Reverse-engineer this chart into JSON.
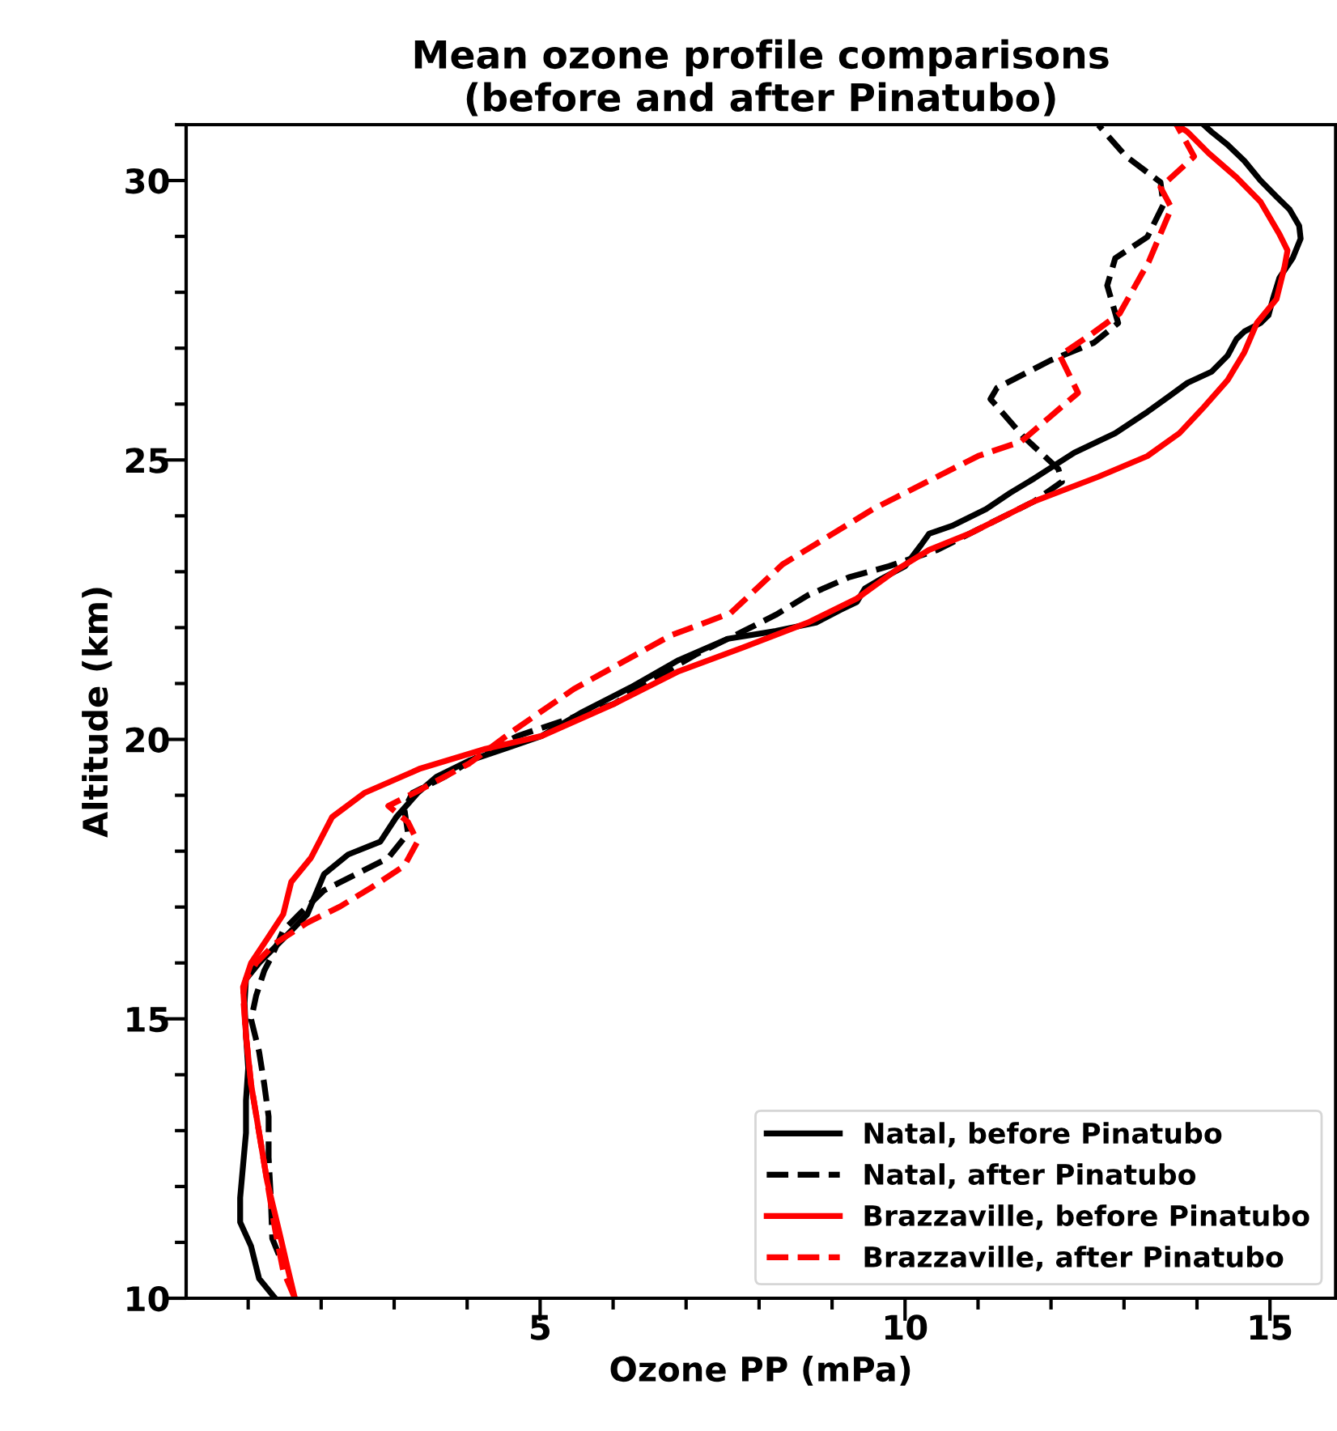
{
  "chart_data": {
    "type": "line",
    "title": "Mean ozone profile comparisons\n(before and after Pinatubo)",
    "xlabel": "Ozone PP (mPa)",
    "ylabel": "Altitude (km)",
    "xlim": [
      0.15,
      15.9
    ],
    "ylim": [
      10,
      31
    ],
    "xticks": [
      {
        "value": 1,
        "label": null
      },
      {
        "value": 2,
        "label": null
      },
      {
        "value": 3,
        "label": null
      },
      {
        "value": 4,
        "label": null
      },
      5,
      {
        "value": 6,
        "label": null
      },
      {
        "value": 7,
        "label": null
      },
      {
        "value": 8,
        "label": null
      },
      {
        "value": 9,
        "label": null
      },
      10,
      {
        "value": 11,
        "label": null
      },
      {
        "value": 12,
        "label": null
      },
      {
        "value": 13,
        "label": null
      },
      {
        "value": 14,
        "label": null
      },
      15
    ],
    "yticks": [
      10,
      {
        "value": 11,
        "label": null
      },
      {
        "value": 12,
        "label": null
      },
      {
        "value": 13,
        "label": null
      },
      {
        "value": 14,
        "label": null
      },
      15,
      {
        "value": 16,
        "label": null
      },
      {
        "value": 17,
        "label": null
      },
      {
        "value": 18,
        "label": null
      },
      {
        "value": 19,
        "label": null
      },
      20,
      {
        "value": 21,
        "label": null
      },
      {
        "value": 22,
        "label": null
      },
      {
        "value": 23,
        "label": null
      },
      {
        "value": 24,
        "label": null
      },
      25,
      {
        "value": 26,
        "label": null
      },
      {
        "value": 27,
        "label": null
      },
      {
        "value": 28,
        "label": null
      },
      {
        "value": 29,
        "label": null
      },
      30,
      {
        "value": 31,
        "label": null
      }
    ],
    "grid": false,
    "legend": "bottom right",
    "marker": "none",
    "series": [
      {
        "name": "Natal, before Pinatubo",
        "color": "#000000",
        "line_style": "solid",
        "x": [
          1.37,
          1.15,
          1.04,
          0.89,
          0.89,
          0.93,
          0.97,
          0.97,
          1.0,
          0.97,
          0.95,
          0.97,
          1.15,
          1.48,
          1.81,
          2.04,
          2.37,
          2.81,
          3.03,
          3.32,
          3.58,
          4.03,
          4.58,
          5.02,
          5.58,
          6.24,
          6.9,
          7.57,
          8.23,
          8.78,
          9.12,
          9.34,
          9.45,
          9.67,
          10.0,
          10.22,
          10.33,
          10.66,
          11.11,
          11.44,
          11.77,
          12.32,
          12.88,
          13.32,
          13.65,
          13.87,
          14.2,
          14.42,
          14.54,
          14.65,
          14.87,
          14.98,
          15.04,
          15.13,
          15.31,
          15.42,
          15.4,
          15.27,
          15.09,
          14.87,
          14.65,
          14.42,
          14.2,
          14.09
        ],
        "values": [
          10.0,
          10.35,
          10.93,
          11.36,
          11.8,
          12.38,
          12.96,
          13.54,
          14.12,
          14.7,
          15.28,
          15.71,
          16.0,
          16.43,
          16.87,
          17.59,
          17.94,
          18.17,
          18.61,
          19.04,
          19.33,
          19.62,
          19.86,
          20.06,
          20.49,
          20.93,
          21.42,
          21.8,
          21.94,
          22.09,
          22.32,
          22.46,
          22.7,
          22.87,
          23.1,
          23.48,
          23.68,
          23.83,
          24.12,
          24.41,
          24.67,
          25.13,
          25.48,
          25.86,
          26.17,
          26.38,
          26.58,
          26.87,
          27.16,
          27.3,
          27.45,
          27.59,
          27.88,
          28.26,
          28.61,
          28.96,
          29.19,
          29.48,
          29.71,
          30.0,
          30.35,
          30.64,
          30.87,
          31.0
        ]
      },
      {
        "name": "Natal, after Pinatubo",
        "color": "#000000",
        "line_style": "dashed",
        "x": [
          1.42,
          1.33,
          1.31,
          1.28,
          1.28,
          1.22,
          1.15,
          1.04,
          1.11,
          1.22,
          1.33,
          1.48,
          1.7,
          2.04,
          2.48,
          2.92,
          3.19,
          3.14,
          3.25,
          3.69,
          4.25,
          4.69,
          5.35,
          6.02,
          6.46,
          7.12,
          7.79,
          8.23,
          8.67,
          9.23,
          9.78,
          10.44,
          11.11,
          11.77,
          12.15,
          12.1,
          11.62,
          11.17,
          11.26,
          11.99,
          12.59,
          12.92,
          12.77,
          12.88,
          13.32,
          13.54,
          13.5,
          13.03,
          12.65
        ],
        "values": [
          10.78,
          11.07,
          11.8,
          12.52,
          13.25,
          13.83,
          14.41,
          14.99,
          15.42,
          15.86,
          16.14,
          16.58,
          16.87,
          17.3,
          17.59,
          17.88,
          18.32,
          18.75,
          19.04,
          19.33,
          19.77,
          20.06,
          20.35,
          20.64,
          21.01,
          21.51,
          21.94,
          22.23,
          22.58,
          22.9,
          23.1,
          23.39,
          23.83,
          24.26,
          24.61,
          24.84,
          25.42,
          26.09,
          26.29,
          26.78,
          27.1,
          27.45,
          28.12,
          28.61,
          28.99,
          29.57,
          29.97,
          30.43,
          30.99
        ]
      },
      {
        "name": "Brazzaville, before Pinatubo",
        "color": "#ff0000",
        "line_style": "solid",
        "x": [
          1.64,
          1.55,
          1.42,
          1.26,
          1.15,
          1.04,
          0.97,
          0.93,
          1.04,
          1.26,
          1.48,
          1.59,
          1.86,
          2.15,
          2.59,
          3.36,
          4.25,
          5.02,
          6.02,
          6.9,
          7.79,
          8.67,
          9.34,
          9.89,
          10.33,
          10.88,
          11.77,
          12.65,
          13.32,
          13.76,
          14.09,
          14.42,
          14.65,
          14.82,
          15.09,
          15.2,
          15.24,
          15.13,
          14.87,
          14.54,
          14.16,
          13.87,
          13.72
        ],
        "values": [
          10.0,
          10.49,
          11.22,
          12.09,
          12.96,
          13.83,
          14.7,
          15.57,
          16.0,
          16.43,
          16.87,
          17.45,
          17.88,
          18.61,
          19.04,
          19.48,
          19.83,
          20.06,
          20.64,
          21.22,
          21.65,
          22.09,
          22.52,
          23.04,
          23.39,
          23.68,
          24.26,
          24.7,
          25.07,
          25.48,
          25.94,
          26.43,
          26.93,
          27.45,
          27.88,
          28.46,
          28.75,
          29.04,
          29.62,
          30.06,
          30.49,
          30.87,
          31.0
        ]
      },
      {
        "name": "Brazzaville, after Pinatubo",
        "color": "#ff0000",
        "line_style": "dashed",
        "x": [
          1.64,
          1.48,
          1.37,
          1.26,
          1.15,
          1.04,
          0.97,
          0.93,
          0.97,
          1.11,
          1.37,
          1.81,
          2.26,
          2.7,
          3.14,
          3.32,
          3.19,
          2.92,
          3.36,
          4.03,
          4.65,
          5.46,
          6.79,
          7.61,
          8.32,
          9.56,
          11.0,
          11.59,
          12.37,
          12.12,
          12.52,
          12.94,
          13.34,
          13.65,
          13.5,
          13.96,
          13.72
        ],
        "values": [
          10.0,
          10.49,
          11.22,
          12.09,
          12.96,
          13.83,
          14.7,
          15.42,
          15.71,
          16.0,
          16.35,
          16.72,
          17.01,
          17.36,
          17.74,
          18.17,
          18.52,
          18.81,
          19.1,
          19.57,
          20.17,
          20.9,
          21.86,
          22.26,
          23.13,
          24.12,
          25.07,
          25.33,
          26.2,
          26.87,
          27.22,
          27.62,
          28.55,
          29.51,
          29.88,
          30.43,
          31.0
        ]
      }
    ]
  }
}
